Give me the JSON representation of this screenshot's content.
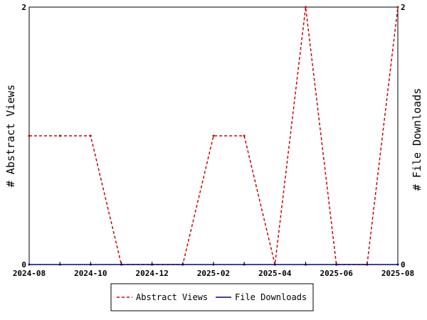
{
  "chart_data": {
    "type": "line",
    "x": [
      "2024-08",
      "2024-09",
      "2024-10",
      "2024-11",
      "2024-12",
      "2025-01",
      "2025-02",
      "2025-03",
      "2025-04",
      "2025-05",
      "2025-06",
      "2025-07",
      "2025-08"
    ],
    "x_tick_labels": [
      "2024-08",
      "2024-10",
      "2024-12",
      "2025-02",
      "2025-04",
      "2025-06",
      "2025-08"
    ],
    "series": [
      {
        "name": "Abstract Views",
        "axis": "left",
        "color": "#cc0000",
        "dash": "dashed",
        "values": [
          1,
          1,
          1,
          0,
          0,
          0,
          1,
          1,
          0,
          2,
          0,
          0,
          2
        ]
      },
      {
        "name": "File Downloads",
        "axis": "right",
        "color": "#00008b",
        "dash": "solid",
        "values": [
          0,
          0,
          0,
          0,
          0,
          0,
          0,
          0,
          0,
          0,
          0,
          0,
          0
        ]
      }
    ],
    "ylabel_left": "# Abstract Views",
    "ylabel_right": "# File Downloads",
    "ylim_left": [
      0,
      2
    ],
    "ylim_right": [
      0,
      2
    ],
    "y_ticks_left": [
      "0",
      "2"
    ],
    "y_ticks_right": [
      "0",
      "2"
    ],
    "grid": false,
    "legend_position": "bottom-center"
  }
}
